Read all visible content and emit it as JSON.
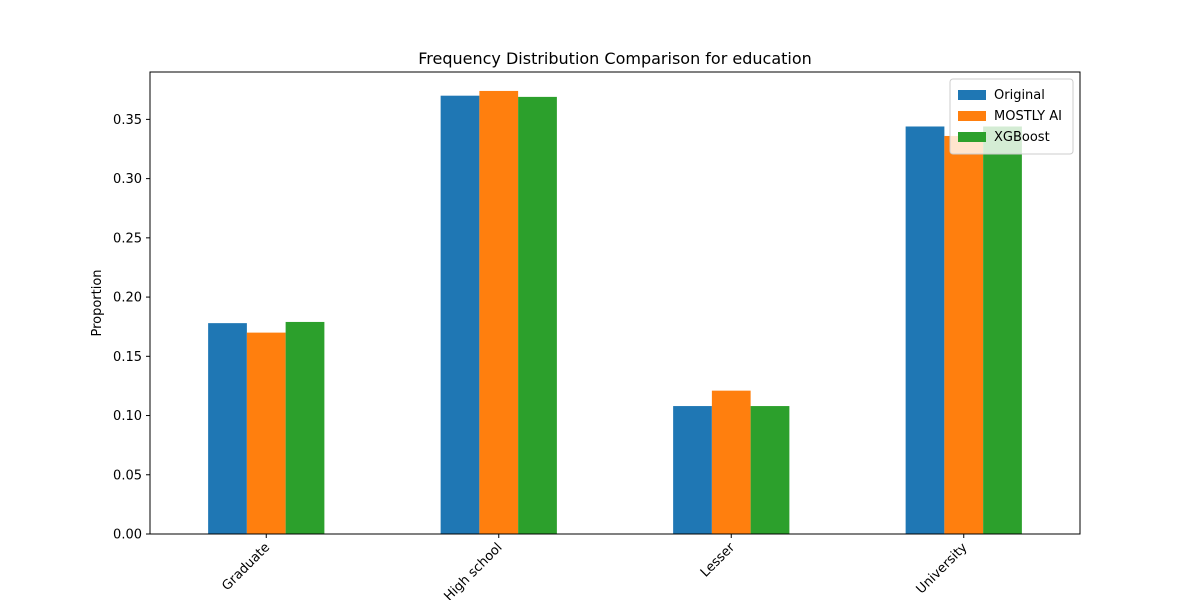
{
  "chart_data": {
    "type": "bar",
    "title": "Frequency Distribution Comparison for education",
    "xlabel": "",
    "ylabel": "Proportion",
    "ylim": [
      0,
      0.39
    ],
    "yticks": [
      0.0,
      0.05,
      0.1,
      0.15,
      0.2,
      0.25,
      0.3,
      0.35
    ],
    "ytick_labels": [
      "0.00",
      "0.05",
      "0.10",
      "0.15",
      "0.20",
      "0.25",
      "0.30",
      "0.35"
    ],
    "categories": [
      "Graduate",
      "High school",
      "Lesser",
      "University"
    ],
    "series": [
      {
        "name": "Original",
        "color": "#1f77b4",
        "values": [
          0.178,
          0.37,
          0.108,
          0.344
        ]
      },
      {
        "name": "MOSTLY AI",
        "color": "#ff7f0e",
        "values": [
          0.17,
          0.374,
          0.121,
          0.336
        ]
      },
      {
        "name": "XGBoost",
        "color": "#2ca02c",
        "values": [
          0.179,
          0.369,
          0.108,
          0.344
        ]
      }
    ],
    "legend_position": "upper-right",
    "grid": false,
    "xtick_rotation": "45"
  }
}
